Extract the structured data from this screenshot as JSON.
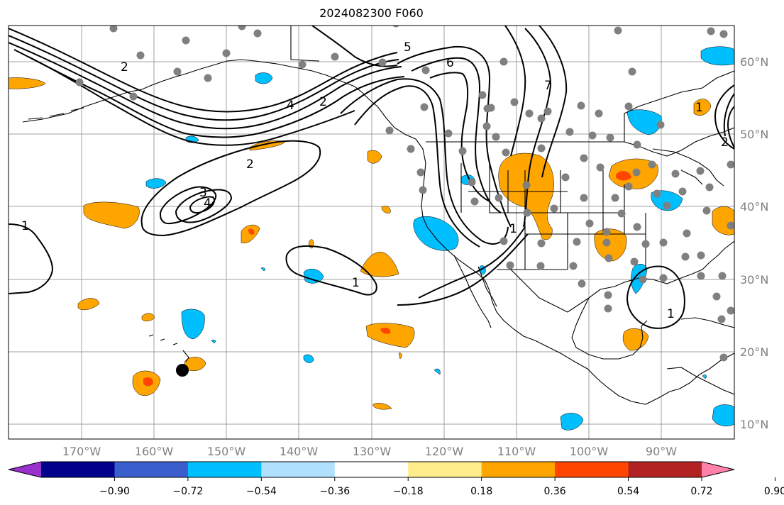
{
  "title": "2024082300 F060",
  "colors": {
    "background": "#ffffff",
    "grid": "#a0a0a0",
    "tick_label": "#808080",
    "contour": "#000000",
    "station_dot": "#808080",
    "marker": "#000000"
  },
  "map": {
    "lon_labels": [
      "170°W",
      "160°W",
      "150°W",
      "140°W",
      "130°W",
      "120°W",
      "110°W",
      "100°W",
      "90°W"
    ],
    "lat_labels": [
      "60°N",
      "50°N",
      "40°N",
      "30°N",
      "20°N",
      "10°N"
    ],
    "contour_labels": [
      "1",
      "2",
      "3",
      "4",
      "4",
      "2",
      "2",
      "5",
      "6",
      "7",
      "1",
      "1",
      "1",
      "1",
      "2"
    ],
    "field_legend": [
      {
        "label": "≤ -0.90",
        "color": "#9932cc"
      },
      {
        "label": "-0.90 to -0.72",
        "color": "#00008b"
      },
      {
        "label": "-0.72 to -0.54",
        "color": "#3a5fcd"
      },
      {
        "label": "-0.54 to -0.36",
        "color": "#00bfff"
      },
      {
        "label": "-0.36 to -0.18",
        "color": "#b0e2ff"
      },
      {
        "label": "-0.18 to 0.18",
        "color": "#ffffff"
      },
      {
        "label": "0.18 to 0.36",
        "color": "#ffec8b"
      },
      {
        "label": "0.36 to 0.54",
        "color": "#ffa500"
      },
      {
        "label": "0.54 to 0.72",
        "color": "#ff4500"
      },
      {
        "label": "0.72 to 0.90",
        "color": "#b22222"
      },
      {
        "label": "≥ 0.90",
        "color": "#ff82ab"
      }
    ]
  },
  "colorbar": {
    "ticks": [
      "−0.90",
      "−0.72",
      "−0.54",
      "−0.36",
      "−0.18",
      "0.18",
      "0.36",
      "0.54",
      "0.72",
      "0.90"
    ],
    "colors": [
      "#9932cc",
      "#00008b",
      "#3a5fcd",
      "#00bfff",
      "#b0e2ff",
      "#ffffff",
      "#ffec8b",
      "#ffa500",
      "#ff4500",
      "#b22222",
      "#ff82ab"
    ]
  }
}
